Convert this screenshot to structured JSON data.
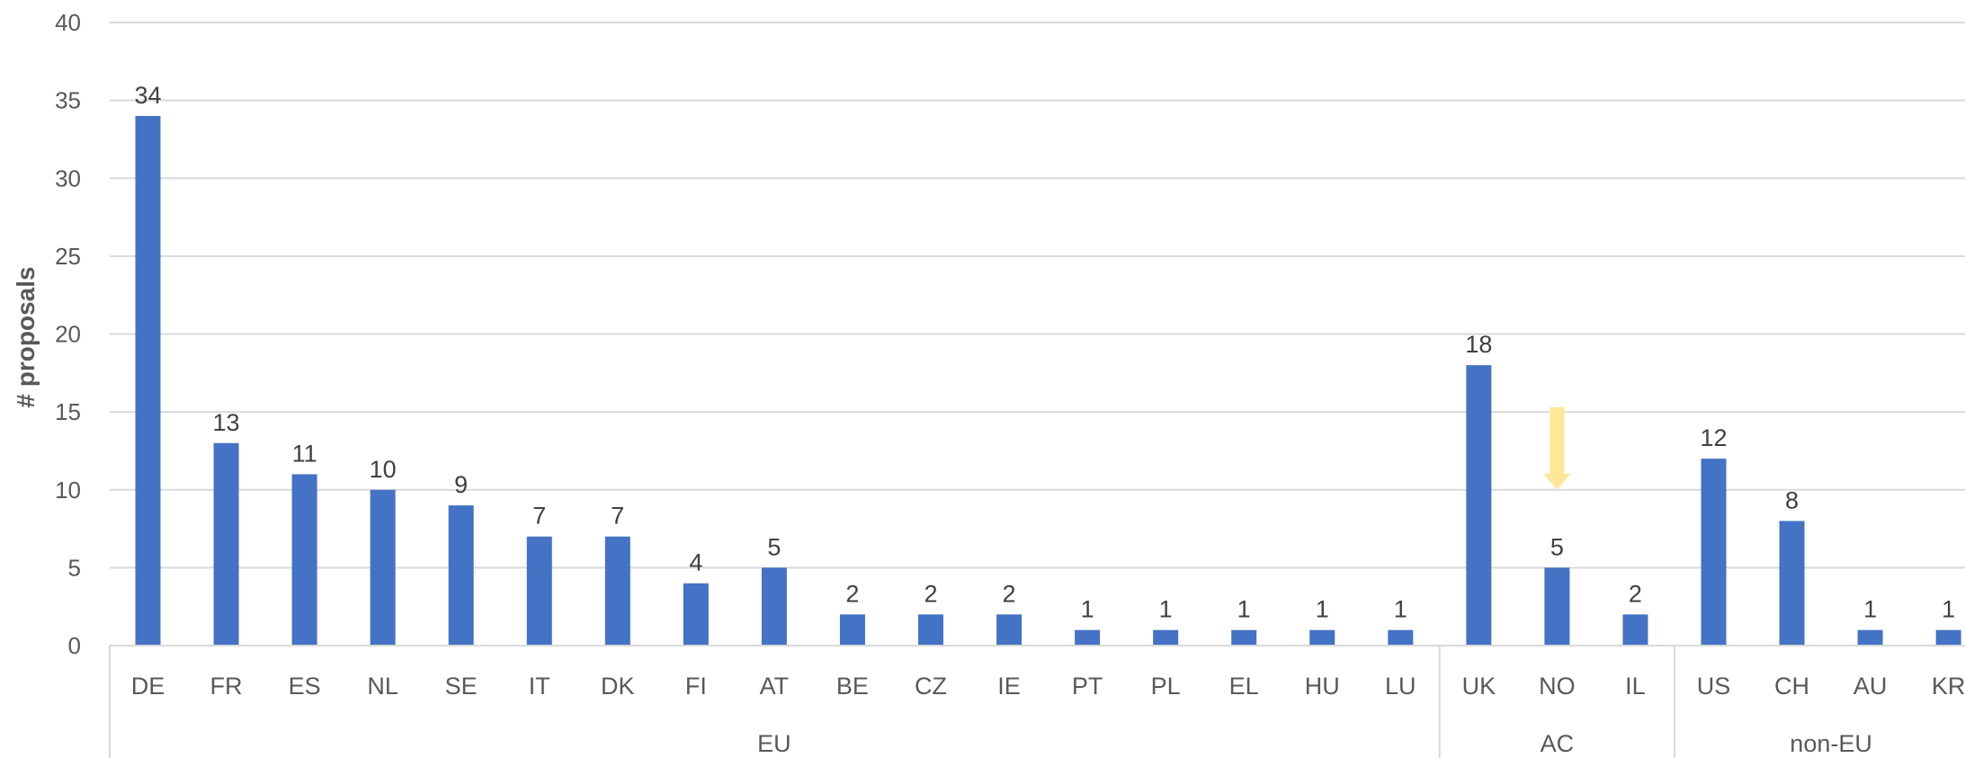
{
  "chart_data": {
    "type": "bar",
    "ylabel": "# proposals",
    "ylim": [
      0,
      40
    ],
    "yticks": [
      0,
      5,
      10,
      15,
      20,
      25,
      30,
      35,
      40
    ],
    "grid": true,
    "legend": "none",
    "bar_color": "#4472C4",
    "categories": [
      "DE",
      "FR",
      "ES",
      "NL",
      "SE",
      "IT",
      "DK",
      "FI",
      "AT",
      "BE",
      "CZ",
      "IE",
      "PT",
      "PL",
      "EL",
      "HU",
      "LU",
      "UK",
      "NO",
      "IL",
      "US",
      "CH",
      "AU",
      "KR"
    ],
    "values": [
      34,
      13,
      11,
      10,
      9,
      7,
      7,
      4,
      5,
      2,
      2,
      2,
      1,
      1,
      1,
      1,
      1,
      18,
      5,
      2,
      12,
      8,
      1,
      1
    ],
    "groups": [
      {
        "label": "EU",
        "start": 0,
        "end": 16
      },
      {
        "label": "AC",
        "start": 17,
        "end": 19
      },
      {
        "label": "non-EU",
        "start": 20,
        "end": 23
      }
    ],
    "annotation": {
      "type": "arrow",
      "category": "NO",
      "from": 15.3,
      "to": 10,
      "color": "#FFE699"
    }
  }
}
